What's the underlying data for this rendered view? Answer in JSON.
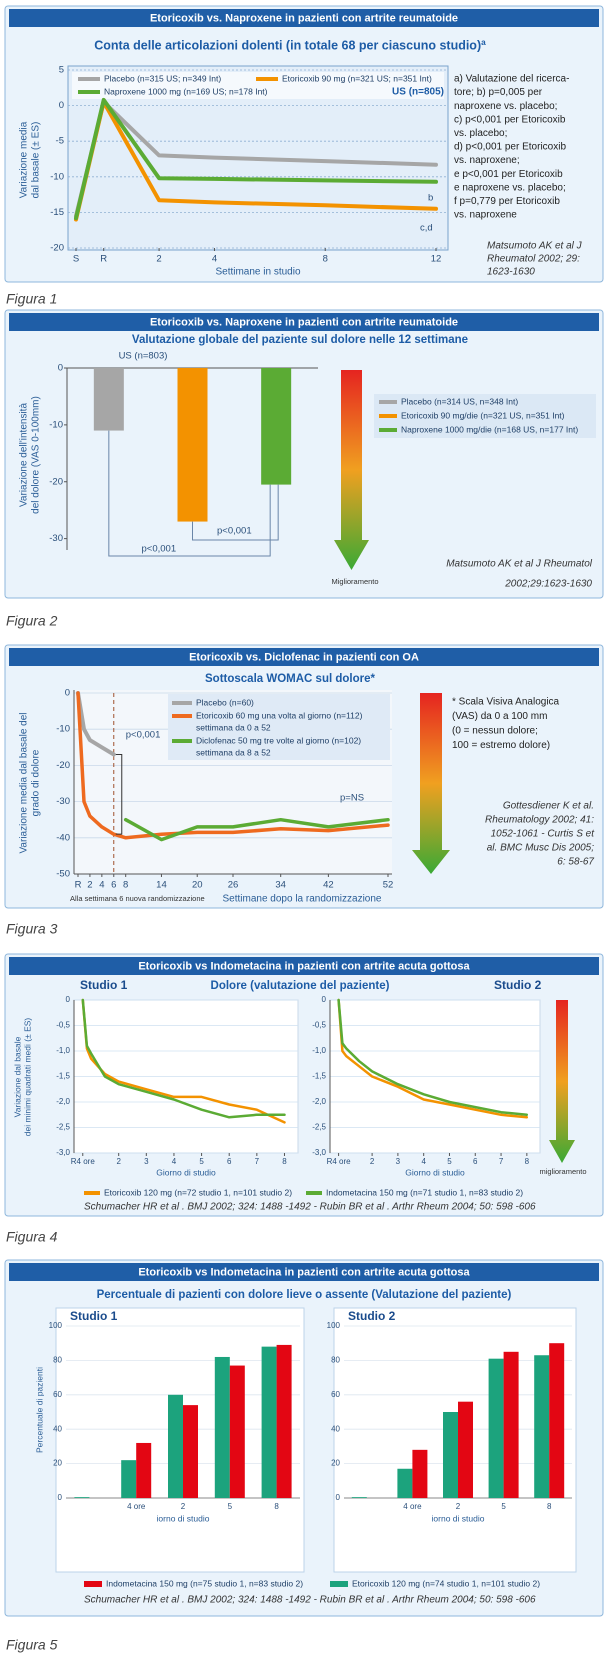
{
  "chart_data": [
    {
      "type": "line",
      "header": "Etoricoxib vs. Naproxene in pazienti con artrite reumatoide",
      "title": "Conta delle articolazioni dolenti (in totale 68 per ciascuno studio)ª",
      "ylabel": [
        "Variazione media",
        "dal basale (± ES)"
      ],
      "xlabel": "Settimane in studio",
      "xlim": [
        -1,
        12
      ],
      "xticks": [
        {
          "value": -1,
          "label": "S"
        },
        {
          "value": 0,
          "label": "R"
        },
        2,
        4,
        8,
        12
      ],
      "ylim": [
        -20,
        5
      ],
      "yticks": [
        5,
        0,
        -5,
        -10,
        -15,
        -20
      ],
      "grid": true,
      "x": [
        -1,
        0,
        2,
        4,
        8,
        12
      ],
      "series": [
        {
          "name": "Placebo (n=315 US; n=349 Int)",
          "color": "#a6a6a6",
          "values": [
            -15.5,
            0.5,
            -7,
            -7.3,
            -7.8,
            -8.3
          ]
        },
        {
          "name": "Etoricoxib 90 mg (n=321 US; n=351 Int)",
          "color": "#f39200",
          "values": [
            -16,
            0.5,
            -13.3,
            -13.6,
            -14,
            -14.5
          ]
        },
        {
          "name": "Naproxene 1000 mg (n=169 US; n=178 Int)",
          "color": "#5bab34",
          "values": [
            -15.8,
            0.8,
            -10.2,
            -10.3,
            -10.5,
            -10.7
          ]
        }
      ],
      "annotations": [
        "US (n=805)",
        "b",
        "c,d"
      ],
      "notes": [
        "a) Valutazione del ricerca-",
        "tore; b) p=0,005 per",
        "naproxene vs. placebo;",
        "c) p<0,001 per Etoricoxib",
        "vs. placebo;",
        "d) p<0,001 per Etoricoxib",
        "vs. naproxene;",
        "e p<0,001 per Etoricoxib",
        "e naproxene vs. placebo;",
        "f p=0,779 per Etoricoxib",
        "vs. naproxene"
      ],
      "citation": [
        "Matsumoto AK et al J",
        "Rheumatol 2002; 29:",
        "1623-1630"
      ],
      "caption": "Figura 1"
    },
    {
      "type": "bar",
      "header": "Etoricoxib vs. Naproxene in pazienti con artrite reumatoide",
      "title": "Valutazione globale del paziente sul dolore nelle 12 settimane",
      "ylabel": [
        "Variazione dell'intensità",
        "del dolore (VAS 0-100mm)"
      ],
      "ylim": [
        -32,
        0
      ],
      "yticks": [
        0,
        -10,
        -20,
        -30
      ],
      "grid": false,
      "categories": [
        null
      ],
      "series": [
        {
          "name": "Placebo (n=314 US, n=348 Int)",
          "color": "#a6a6a6",
          "values": [
            -11
          ]
        },
        {
          "name": "Etoricoxib 90 mg/die (n=321 US, n=351 Int)",
          "color": "#f39200",
          "values": [
            -27
          ]
        },
        {
          "name": "Naproxene 1000 mg/die (n=168 US, n=177 Int)",
          "color": "#5bab34",
          "values": [
            -20.5
          ]
        }
      ],
      "annotations": [
        "US (n=803)",
        "p<0,001",
        "p<0,001",
        "Miglioramento"
      ],
      "citation": [
        "Matsumoto AK et al J Rheumatol",
        "2002;29:1623-1630"
      ],
      "caption": "Figura 2"
    },
    {
      "type": "line",
      "header": "Etoricoxib vs. Diclofenac in pazienti con OA",
      "title": "Sottoscala WOMAC sul dolore*",
      "ylabel": [
        "Variazione media dal basale del",
        "grado di dolore"
      ],
      "xlabel": "Settimane dopo la randomizzazione",
      "xlim": [
        0,
        52
      ],
      "xticks": [
        {
          "value": 0,
          "label": "R"
        },
        2,
        4,
        6,
        8,
        14,
        20,
        26,
        34,
        42,
        52
      ],
      "ylim": [
        -50,
        0
      ],
      "yticks": [
        0,
        -10,
        -20,
        -30,
        -40,
        -50
      ],
      "grid": true,
      "series": [
        {
          "name": "Placebo (n=60)",
          "color": "#a6a6a6",
          "x": [
            0,
            1,
            2,
            4,
            6
          ],
          "values": [
            0,
            -10,
            -13,
            -15,
            -17
          ]
        },
        {
          "name": "Etoricoxib 60 mg una volta al giorno (n=112)",
          "note": "settimana da 0 a 52",
          "color": "#ee6a1f",
          "x": [
            0,
            1,
            2,
            4,
            6,
            8,
            14,
            20,
            26,
            34,
            42,
            52
          ],
          "values": [
            0,
            -30,
            -34,
            -37,
            -39,
            -40,
            -39,
            -38.5,
            -38.5,
            -37.5,
            -38,
            -36.5
          ]
        },
        {
          "name": "Diclofenac 50 mg tre volte al giorno (n=102)",
          "note": "settimana da 8 a 52",
          "color": "#5bab34",
          "x": [
            8,
            14,
            20,
            26,
            34,
            42,
            52
          ],
          "values": [
            -35,
            -40.5,
            -37,
            -37,
            -35,
            -37,
            -35
          ]
        }
      ],
      "annotations": [
        "p<0,001",
        "p=NS",
        "Alla settimana 6 nuova randomizzazione"
      ],
      "notes": [
        "* Scala Visiva Analogica",
        "(VAS) da 0 a 100 mm",
        "(0 = nessun dolore;",
        "100 = estremo dolore)"
      ],
      "citation": [
        "Gottesdiener K et al.",
        "Rheumatology 2002; 41:",
        "1052-1061 - Curtis S et",
        "al. BMC Musc Dis 2005;",
        "6: 58-67"
      ],
      "caption": "Figura 3"
    },
    {
      "type": "line",
      "header": "Etoricoxib vs Indometacina in pazienti con artrite acuta gottosa",
      "title": "Dolore (valutazione del paziente)",
      "subtitle": "Studio 1",
      "ylabel": [
        "Variazione dal basale",
        "dei minimi quadrati medi (± ES)"
      ],
      "xlabel": "Giorno di studio",
      "xlim": [
        0.6,
        8.2
      ],
      "xticks": [
        {
          "value": 0.7,
          "label": "R4 ore"
        },
        2,
        3,
        4,
        5,
        6,
        7,
        8
      ],
      "ylim": [
        -3,
        0
      ],
      "yticks": [
        0,
        {
          "value": -0.5,
          "label": "-0,5"
        },
        {
          "value": -1,
          "label": "-1,0"
        },
        {
          "value": -1.5,
          "label": "-1,5"
        },
        {
          "value": -2,
          "label": "-2,0"
        },
        {
          "value": -2.5,
          "label": "-2,5"
        },
        {
          "value": -3,
          "label": "-3,0"
        }
      ],
      "grid": true,
      "x": [
        0.7,
        0.85,
        1,
        1.5,
        2,
        3,
        4,
        5,
        6,
        7,
        8
      ],
      "series": [
        {
          "name": "Etoricoxib 120 mg (n=72 studio 1, n=101 studio 2)",
          "color": "#f39200",
          "values": [
            0,
            -0.95,
            -1.15,
            -1.45,
            -1.6,
            -1.75,
            -1.9,
            -1.9,
            -2.05,
            -2.15,
            -2.4
          ]
        },
        {
          "name": "Indometacina 150 mg (n=71 studio 1, n=83 studio 2)",
          "color": "#5bab34",
          "values": [
            0,
            -0.9,
            -1.05,
            -1.5,
            -1.65,
            -1.8,
            -1.95,
            -2.15,
            -2.3,
            -2.25,
            -2.25
          ]
        }
      ],
      "citation": "Schumacher HR et al . BMJ 2002; 324: 1488 -1492 - Rubin BR et al . Arthr Rheum 2004; 50: 598 -606",
      "caption": "Figura 4"
    },
    {
      "type": "line",
      "subtitle": "Studio 2",
      "xlabel": "Giorno di studio",
      "xlim": [
        0.6,
        8.2
      ],
      "xticks": [
        {
          "value": 0.7,
          "label": "R4 ore"
        },
        2,
        3,
        4,
        5,
        6,
        7,
        8
      ],
      "ylim": [
        -3,
        0
      ],
      "yticks": [
        0,
        {
          "value": -0.5,
          "label": "-0,5"
        },
        {
          "value": -1,
          "label": "-1,0"
        },
        {
          "value": -1.5,
          "label": "-1,5"
        },
        {
          "value": -2,
          "label": "-2,0"
        },
        {
          "value": -2.5,
          "label": "-2,5"
        },
        {
          "value": -3,
          "label": "-3,0"
        }
      ],
      "grid": true,
      "x": [
        0.7,
        0.85,
        1,
        1.5,
        2,
        3,
        4,
        5,
        6,
        7,
        8
      ],
      "series": [
        {
          "color": "#f39200",
          "values": [
            0,
            -1,
            -1.1,
            -1.3,
            -1.5,
            -1.7,
            -1.95,
            -2.05,
            -2.15,
            -2.25,
            -2.3
          ]
        },
        {
          "color": "#5bab34",
          "values": [
            0,
            -0.85,
            -0.95,
            -1.2,
            -1.4,
            -1.65,
            -1.85,
            -2,
            -2.1,
            -2.2,
            -2.25
          ]
        }
      ],
      "annotations": [
        "miglioramento"
      ]
    },
    {
      "type": "bar",
      "header": "Etoricoxib vs Indometacina in pazienti con artrite acuta gottosa",
      "title": "Percentuale di pazienti con dolore lieve o assente (Valutazione del paziente)",
      "subtitle": "Studio 1",
      "ylabel": "Percentuale di pazienti",
      "xlabel": "iorno di studio",
      "categories": [
        null,
        "4 ore",
        "2",
        "5",
        "8"
      ],
      "ylim": [
        0,
        100
      ],
      "yticks": [
        0,
        20,
        40,
        60,
        80,
        100
      ],
      "grid": true,
      "series": [
        {
          "name": "Etoricoxib 120 mg (n=74 studio 1, n=101 studio 2)",
          "color": "#1ca37d",
          "values": [
            0.5,
            22,
            60,
            82,
            88
          ]
        },
        {
          "name": "Indometacina 150 mg (n=75 studio 1, n=83 studio 2)",
          "color": "#e30613",
          "values": [
            null,
            32,
            54,
            77,
            89
          ]
        }
      ],
      "citation": "Schumacher HR et al . BMJ 2002; 324: 1488 -1492 - Rubin BR et al . Arthr Rheum 2004; 50: 598 -606",
      "caption": "Figura 5"
    },
    {
      "type": "bar",
      "subtitle": "Studio 2",
      "xlabel": "iorno di studio",
      "categories": [
        null,
        "4 ore",
        "2",
        "5",
        "8"
      ],
      "ylim": [
        0,
        100
      ],
      "yticks": [
        0,
        20,
        40,
        60,
        80,
        100
      ],
      "grid": true,
      "series": [
        {
          "color": "#1ca37d",
          "values": [
            0.5,
            17,
            50,
            81,
            83
          ]
        },
        {
          "color": "#e30613",
          "values": [
            null,
            28,
            56,
            85,
            90
          ]
        }
      ]
    }
  ]
}
